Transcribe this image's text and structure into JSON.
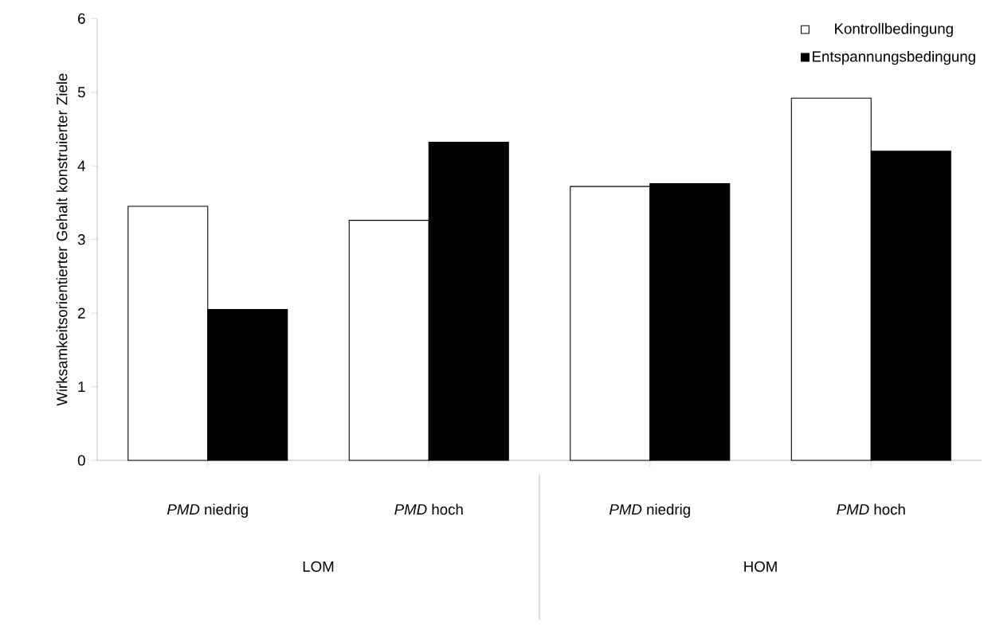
{
  "chart_data": {
    "type": "bar",
    "ylabel": "Wirksamkeitsorientierter Gehalt konstruierter Ziele",
    "categories": [
      "*PMD* niedrig",
      "*PMD* hoch",
      "*PMD* niedrig",
      "*PMD* hoch"
    ],
    "series": [
      {
        "name": "Kontrollbedingung",
        "color": "#ffffff",
        "values": [
          3.45,
          3.26,
          3.72,
          4.92
        ]
      },
      {
        "name": "Entspannungsbedingung",
        "color": "#000000",
        "values": [
          2.05,
          4.32,
          3.76,
          4.2
        ]
      }
    ],
    "ylim": [
      0,
      6
    ],
    "yticks": [
      0,
      1,
      2,
      3,
      4,
      5,
      6
    ],
    "grid": false,
    "legend": "top right",
    "annotations": [
      "LOM",
      "HOM"
    ]
  }
}
